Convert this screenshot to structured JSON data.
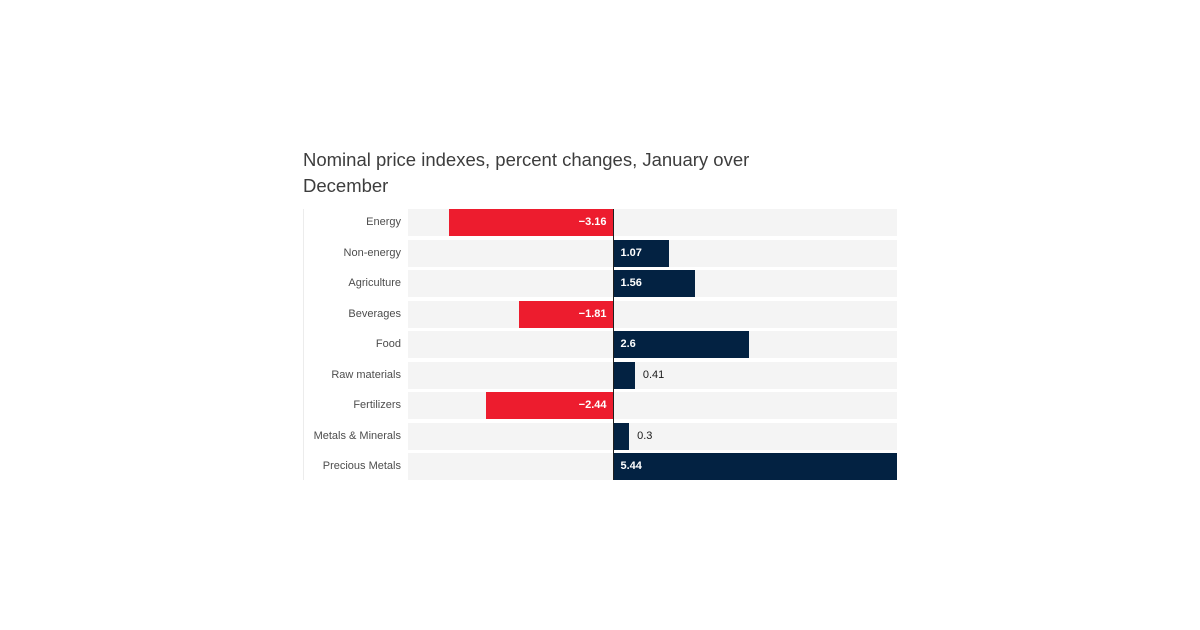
{
  "page": {
    "background": "#ffffff"
  },
  "chart_data": {
    "type": "bar",
    "orientation": "horizontal",
    "title": "Nominal price indexes, percent changes, January over December",
    "categories": [
      "Energy",
      "Non-energy",
      "Agriculture",
      "Beverages",
      "Food",
      "Raw materials",
      "Fertilizers",
      "Metals & Minerals",
      "Precious Metals"
    ],
    "values": [
      -3.16,
      1.07,
      1.56,
      -1.81,
      2.6,
      0.41,
      -2.44,
      0.3,
      5.44
    ],
    "value_labels": [
      "−3.16",
      "1.07",
      "1.56",
      "−1.81",
      "2.6",
      "0.41",
      "−2.44",
      "0.3",
      "5.44"
    ],
    "xlabel": "",
    "ylabel": "",
    "xlim": [
      -3.94,
      5.44
    ],
    "grid": false,
    "legend": false,
    "axis_ticks_visible": false,
    "zero_line": true,
    "colors": {
      "positive_bar": "#032242",
      "negative_bar": "#ED1C2E",
      "row_band": "#f4f4f4",
      "zero_line": "#1f1f1f",
      "left_spine": "#ececec",
      "inside_label": "#ffffff",
      "outside_label": "#1a1a1a",
      "category_label": "#4d4d4d",
      "title": "#3d3d3d"
    }
  }
}
